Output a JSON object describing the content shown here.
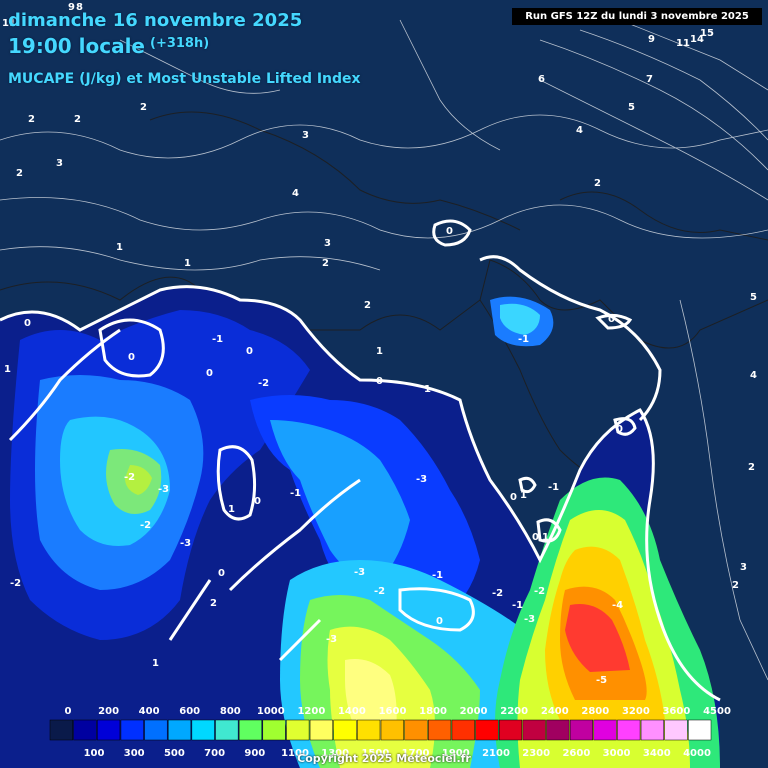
{
  "header": {
    "date": "dimanche 16 novembre 2025",
    "time": "19:00 locale",
    "forecast_step": "(+318h)",
    "parameter": "MUCAPE (J/kg) et Most Unstable Lifted Index",
    "run": "Run GFS 12Z du lundi 3 novembre 2025"
  },
  "legend": {
    "top_ticks": [
      "0",
      "200",
      "400",
      "600",
      "800",
      "1000",
      "1200",
      "1400",
      "1600",
      "1800",
      "2000",
      "2200",
      "2400",
      "2800",
      "3200",
      "3600",
      "4500"
    ],
    "bottom_ticks": [
      "100",
      "300",
      "500",
      "700",
      "900",
      "1100",
      "1300",
      "1500",
      "1700",
      "1900",
      "2100",
      "2300",
      "2600",
      "3000",
      "3400",
      "4000"
    ],
    "colors": [
      "#0a1a4a",
      "#0000a0",
      "#0000d8",
      "#0030ff",
      "#0070ff",
      "#00a8ff",
      "#00d8ff",
      "#40e8d0",
      "#60ff60",
      "#a0ff30",
      "#e0ff30",
      "#ffff60",
      "#ffff00",
      "#ffe000",
      "#ffc000",
      "#ff9000",
      "#ff6000",
      "#ff3000",
      "#ff0000",
      "#e00020",
      "#c00040",
      "#a00060",
      "#c000a0",
      "#e000e0",
      "#ff40ff",
      "#ff90ff",
      "#ffc8ff",
      "#ffffff"
    ],
    "unit": "J/kg"
  },
  "lifted_index_labels": [
    "9",
    "8",
    "11",
    "2",
    "2",
    "3",
    "2",
    "3",
    "3",
    "4",
    "6",
    "7",
    "5",
    "4",
    "9",
    "11",
    "14",
    "15",
    "2",
    "1",
    "3",
    "2",
    "1",
    "2",
    "0",
    "0",
    "-1",
    "0",
    "0",
    "-2",
    "1",
    "0",
    "-1",
    "0",
    "5",
    "0",
    "-1",
    "4",
    "2",
    "-2",
    "-3",
    "-2",
    "-3",
    "1",
    "0",
    "-1",
    "-3",
    "1",
    "0",
    "-1",
    "1",
    "0",
    "2",
    "-2",
    "0",
    "2",
    "-3",
    "-1",
    "-2",
    "-2",
    "-3",
    "-4",
    "-3",
    "0",
    "-5",
    "1",
    "3",
    "2",
    "1",
    "6",
    "5",
    "2",
    "-4",
    "-5",
    "0"
  ],
  "colors": {
    "title": "#45d8ff",
    "background": "#0f2f5a",
    "isoline_zero": "#ffffff",
    "run_box_bg": "#000000"
  },
  "copyright": "Copyright 2025 Meteociel.fr"
}
